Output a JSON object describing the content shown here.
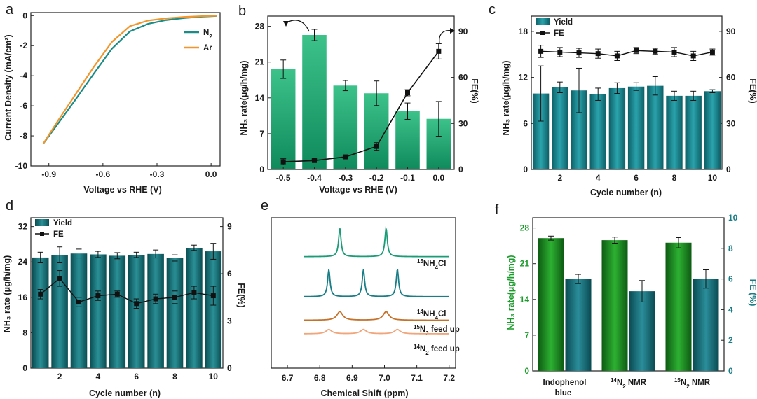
{
  "panel_letters": [
    "a",
    "b",
    "c",
    "d",
    "e",
    "f"
  ],
  "colors": {
    "green_top": "#3dc28a",
    "green_bottom": "#0f8a5c",
    "teal_top": "#2a9aa3",
    "teal_bottom": "#0d5f66",
    "dgreen_top": "#2aa82e",
    "dgreen_bottom": "#0d5a12",
    "dteal_top": "#2a8e9a",
    "dteal_bottom": "#0a4a52",
    "n2_line": "#1c8c86",
    "ar_line": "#f0962d",
    "nmr_15": "#1a9c76",
    "nmr_14": "#177d86",
    "nmr_15feed": "#c4712a",
    "nmr_14feed": "#f0a57a"
  },
  "chart_data": [
    {
      "id": "a",
      "type": "line",
      "xlabel": "Voltage vs RHE (V)",
      "ylabel": "Current Density (mA/cm²)",
      "xlim": [
        -1.0,
        0.05
      ],
      "ylim": [
        -10,
        0.2
      ],
      "xticks": [
        -0.9,
        -0.6,
        -0.3,
        0.0
      ],
      "xtick_labels": [
        "-0.9",
        "-0.6",
        "-0.3",
        "0.0"
      ],
      "yticks": [
        0,
        -2,
        -4,
        -6,
        -8,
        -10
      ],
      "ytick_labels": [
        "0",
        "-2",
        "-4",
        "-6",
        "-8",
        "-10"
      ],
      "series": [
        {
          "name": "N",
          "sub": "2",
          "x": [
            -0.93,
            -0.85,
            -0.75,
            -0.65,
            -0.55,
            -0.45,
            -0.35,
            -0.25,
            -0.15,
            -0.05,
            0.03
          ],
          "y": [
            -8.5,
            -7.2,
            -5.55,
            -3.85,
            -2.2,
            -1.05,
            -0.55,
            -0.3,
            -0.16,
            -0.07,
            -0.02
          ]
        },
        {
          "name": "Ar",
          "sub": "",
          "x": [
            -0.93,
            -0.85,
            -0.75,
            -0.65,
            -0.55,
            -0.45,
            -0.35,
            -0.25,
            -0.15,
            -0.05,
            0.03
          ],
          "y": [
            -8.5,
            -7.0,
            -5.2,
            -3.4,
            -1.75,
            -0.7,
            -0.33,
            -0.18,
            -0.09,
            -0.04,
            -0.01
          ]
        }
      ]
    },
    {
      "id": "b",
      "type": "bar+line",
      "xlabel": "Voltage vs RHE (V)",
      "ylabel": "NH₃ rate(μg/h/mg)",
      "y2label": "FE(%)",
      "categories": [
        "-0.5",
        "-0.4",
        "-0.3",
        "-0.2",
        "-0.1",
        "0.0"
      ],
      "bar_values": [
        19.6,
        26.3,
        16.4,
        14.9,
        11.4,
        9.9
      ],
      "bar_errors": [
        1.8,
        1.1,
        1.0,
        2.4,
        1.6,
        3.4
      ],
      "fe_values": [
        5.0,
        5.8,
        8.2,
        15.0,
        50.0,
        77.0
      ],
      "fe_errors": [
        2.0,
        1.0,
        1.0,
        2.5,
        2.0,
        5.0
      ],
      "ylim": [
        0,
        30
      ],
      "yticks": [
        0,
        7,
        14,
        21,
        28
      ],
      "y2lim": [
        0,
        100
      ],
      "y2ticks": [
        0,
        30,
        60,
        90
      ]
    },
    {
      "id": "c",
      "type": "bar+line",
      "xlabel": "Cycle number (n)",
      "ylabel": "NH₃ rate(μg/h/mg)",
      "y2label": "FE(%)",
      "legend": [
        "Yield",
        "FE"
      ],
      "x": [
        1,
        2,
        3,
        4,
        5,
        6,
        7,
        8,
        9,
        10
      ],
      "bar_values": [
        9.9,
        10.7,
        10.3,
        9.8,
        10.6,
        10.8,
        10.9,
        9.6,
        9.6,
        10.2
      ],
      "bar_errors": [
        3.6,
        0.7,
        2.9,
        0.8,
        0.7,
        0.5,
        1.2,
        0.6,
        0.6,
        0.2
      ],
      "fe_values": [
        77,
        76.5,
        76,
        75.5,
        74,
        77.5,
        77,
        76.5,
        74,
        76.5
      ],
      "fe_errors": [
        4,
        3,
        3,
        3,
        3,
        2,
        2,
        3,
        3,
        2
      ],
      "xlim": [
        0.5,
        10.5
      ],
      "xticks": [
        2,
        4,
        6,
        8,
        10
      ],
      "ylim": [
        0,
        20
      ],
      "yticks": [
        0,
        6,
        12,
        18
      ],
      "y2lim": [
        0,
        100
      ],
      "y2ticks": [
        0,
        30,
        60,
        90
      ]
    },
    {
      "id": "d",
      "type": "bar+line",
      "xlabel": "Cycle number (n)",
      "ylabel": "NH₃ rate (μg/h/mg)",
      "y2label": "FE(%)",
      "legend": [
        "Yield",
        "FE"
      ],
      "x": [
        1,
        2,
        3,
        4,
        5,
        6,
        7,
        8,
        9,
        10
      ],
      "bar_values": [
        25.0,
        25.6,
        25.9,
        25.7,
        25.4,
        25.6,
        25.8,
        24.9,
        27.2,
        26.4
      ],
      "bar_errors": [
        1.2,
        1.8,
        1.0,
        0.7,
        0.7,
        0.6,
        0.9,
        0.7,
        0.6,
        1.8
      ],
      "fe_values": [
        4.7,
        5.7,
        4.2,
        4.6,
        4.7,
        4.1,
        4.4,
        4.5,
        4.8,
        4.6
      ],
      "fe_errors": [
        0.3,
        0.5,
        0.3,
        0.3,
        0.2,
        0.3,
        0.3,
        0.4,
        0.4,
        0.6
      ],
      "xlim": [
        0.5,
        10.5
      ],
      "xticks": [
        2,
        4,
        6,
        8,
        10
      ],
      "ylim": [
        0,
        34
      ],
      "yticks": [
        0,
        8,
        16,
        24,
        32
      ],
      "y2lim": [
        0,
        9.56
      ],
      "y2ticks": [
        0,
        3,
        6,
        9
      ]
    },
    {
      "id": "e",
      "type": "line",
      "xlabel": "Chemical Shift (ppm)",
      "xlim": [
        6.65,
        7.22
      ],
      "xticks": [
        6.7,
        6.8,
        6.9,
        7.0,
        7.1,
        7.2
      ],
      "xtick_labels": [
        "6.7",
        "6.8",
        "6.9",
        "7.0",
        "7.1",
        "7.2"
      ],
      "traces": [
        {
          "label_sup": "15",
          "label_main": "NH",
          "label_sub": "4",
          "label_tail": "Cl",
          "baseline": 0.78,
          "peaks": [
            [
              6.862,
              0.2
            ],
            [
              7.005,
              0.2
            ]
          ]
        },
        {
          "label_sup": "14",
          "label_main": "NH",
          "label_sub": "4",
          "label_tail": "Cl",
          "baseline": 0.5,
          "peaks": [
            [
              6.828,
              0.19
            ],
            [
              6.935,
              0.19
            ],
            [
              7.04,
              0.19
            ]
          ]
        },
        {
          "label_sup": "15",
          "label_main": "N",
          "label_sub": "2",
          "label_tail": " feed up",
          "baseline": 0.335,
          "peaks": [
            [
              6.862,
              0.06
            ],
            [
              7.005,
              0.06
            ]
          ]
        },
        {
          "label_sup": "14",
          "label_main": "N",
          "label_sub": "2",
          "label_tail": " feed up",
          "baseline": 0.24,
          "peaks": [
            [
              6.828,
              0.03
            ],
            [
              6.935,
              0.03
            ],
            [
              7.04,
              0.03
            ]
          ]
        }
      ]
    },
    {
      "id": "f",
      "type": "bar",
      "ylabel": "NH₃ rate(μg/h/mg)",
      "y2label": "FE (%)",
      "categories": [
        {
          "sup": "",
          "main": "Indophenol",
          "line2": "blue"
        },
        {
          "sup": "14",
          "main": "N",
          "sub": "2",
          "tail": " NMR",
          "line2": ""
        },
        {
          "sup": "15",
          "main": "N",
          "sub": "2",
          "tail": " NMR",
          "line2": ""
        }
      ],
      "rate_values": [
        26.0,
        25.6,
        25.1
      ],
      "rate_errors": [
        0.4,
        0.6,
        1.0
      ],
      "fe_values": [
        6.0,
        5.2,
        6.0
      ],
      "fe_errors": [
        0.3,
        0.7,
        0.6
      ],
      "ylim": [
        0,
        30
      ],
      "yticks": [
        0,
        7,
        14,
        21,
        28
      ],
      "y2lim": [
        0,
        10
      ],
      "y2ticks": [
        0,
        2,
        4,
        6,
        8,
        10
      ]
    }
  ]
}
